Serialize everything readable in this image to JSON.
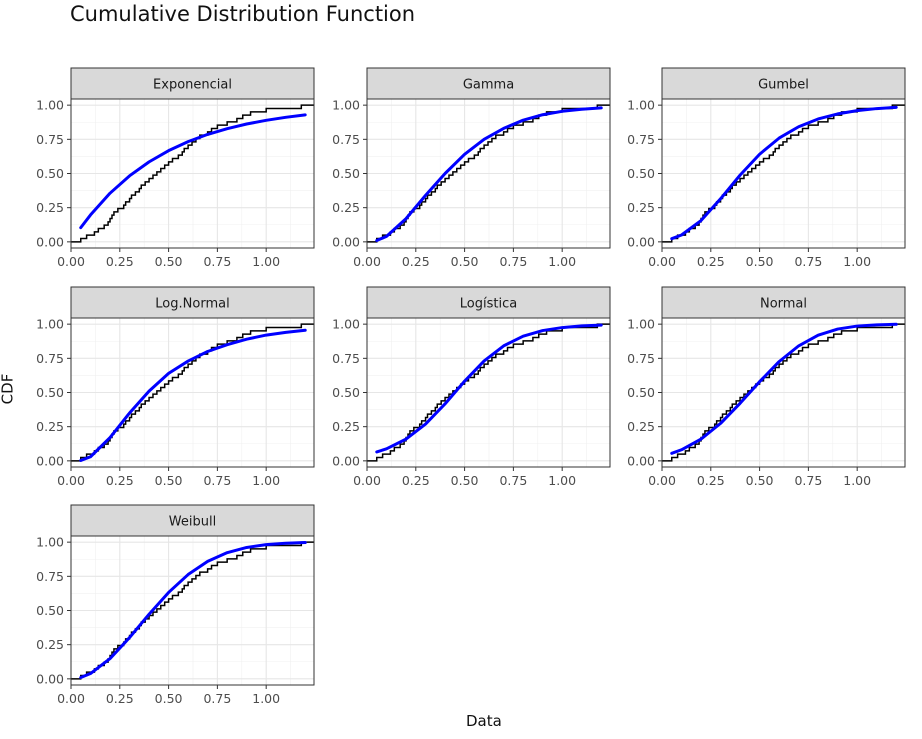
{
  "chart_data": {
    "type": "line",
    "title": "Cumulative Distribution Function",
    "xlabel": "Data",
    "ylabel": "CDF",
    "xlim": [
      0,
      1.245
    ],
    "ylim": [
      -0.045,
      1.045
    ],
    "x_ticks": [
      "0.00",
      "0.25",
      "0.50",
      "0.75",
      "1.00"
    ],
    "y_ticks": [
      "0.00",
      "0.25",
      "0.50",
      "0.75",
      "1.00"
    ],
    "grid": true,
    "colors": {
      "ecdf": "#000000",
      "fit": "#0000ff",
      "strip": "#d9d9d9"
    },
    "empirical_sample": [
      0.05,
      0.08,
      0.12,
      0.14,
      0.17,
      0.19,
      0.2,
      0.21,
      0.22,
      0.24,
      0.27,
      0.28,
      0.3,
      0.31,
      0.33,
      0.35,
      0.36,
      0.38,
      0.4,
      0.42,
      0.44,
      0.46,
      0.48,
      0.5,
      0.52,
      0.55,
      0.57,
      0.58,
      0.6,
      0.62,
      0.64,
      0.66,
      0.7,
      0.72,
      0.75,
      0.8,
      0.85,
      0.88,
      0.92,
      1.0,
      1.18
    ],
    "fit_x": [
      0.05,
      0.1,
      0.2,
      0.3,
      0.4,
      0.5,
      0.6,
      0.7,
      0.8,
      0.9,
      1.0,
      1.1,
      1.2
    ],
    "panels": [
      {
        "name": "Exponencial",
        "fit_y": [
          0.104,
          0.197,
          0.356,
          0.483,
          0.585,
          0.667,
          0.733,
          0.786,
          0.828,
          0.862,
          0.889,
          0.911,
          0.929
        ]
      },
      {
        "name": "Gamma",
        "fit_y": [
          0.01,
          0.04,
          0.17,
          0.34,
          0.5,
          0.64,
          0.75,
          0.83,
          0.89,
          0.93,
          0.955,
          0.97,
          0.98
        ]
      },
      {
        "name": "Gumbel",
        "fit_y": [
          0.023,
          0.05,
          0.156,
          0.315,
          0.488,
          0.641,
          0.759,
          0.842,
          0.899,
          0.936,
          0.96,
          0.975,
          0.984
        ]
      },
      {
        "name": "Log.Normal",
        "fit_y": [
          0.003,
          0.03,
          0.17,
          0.35,
          0.51,
          0.64,
          0.73,
          0.8,
          0.85,
          0.89,
          0.92,
          0.94,
          0.955
        ]
      },
      {
        "name": "Logística",
        "fit_y": [
          0.065,
          0.088,
          0.159,
          0.269,
          0.417,
          0.583,
          0.731,
          0.841,
          0.912,
          0.953,
          0.975,
          0.987,
          0.993
        ]
      },
      {
        "name": "Normal",
        "fit_y": [
          0.055,
          0.081,
          0.159,
          0.274,
          0.421,
          0.579,
          0.726,
          0.841,
          0.919,
          0.964,
          0.986,
          0.995,
          0.999
        ]
      },
      {
        "name": "Weibull",
        "fit_y": [
          0.01,
          0.039,
          0.148,
          0.302,
          0.473,
          0.632,
          0.763,
          0.859,
          0.923,
          0.961,
          0.982,
          0.992,
          0.997
        ]
      }
    ]
  }
}
